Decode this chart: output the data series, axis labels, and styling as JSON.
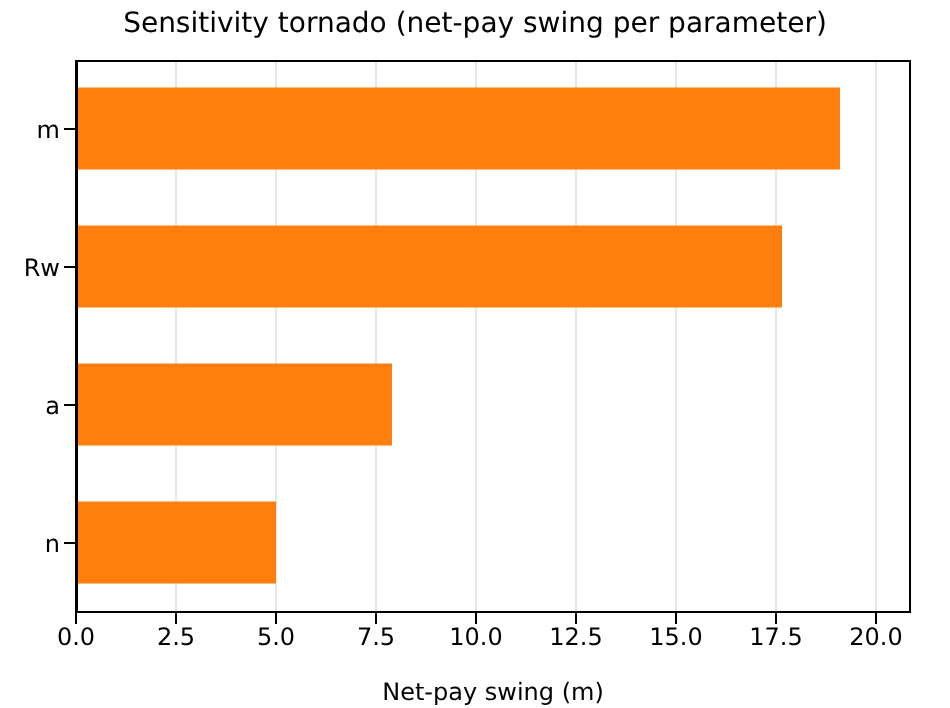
{
  "chart_data": {
    "type": "bar",
    "orientation": "horizontal",
    "title": "Sensitivity tornado (net-pay swing per parameter)",
    "xlabel": "Net-pay swing (m)",
    "categories": [
      "m",
      "Rw",
      "a",
      "n"
    ],
    "values": [
      19.1,
      17.65,
      7.9,
      5.0
    ],
    "color": "#ff7f0e",
    "xlim": [
      0,
      20.85
    ],
    "xticks": [
      {
        "value": 0,
        "label": "0.0"
      },
      2.5,
      {
        "value": 5,
        "label": "5.0"
      },
      7.5,
      {
        "value": 10,
        "label": "10.0"
      },
      12.5,
      {
        "value": 15,
        "label": "15.0"
      },
      17.5,
      {
        "value": 20,
        "label": "20.0"
      }
    ],
    "grid": "x"
  }
}
